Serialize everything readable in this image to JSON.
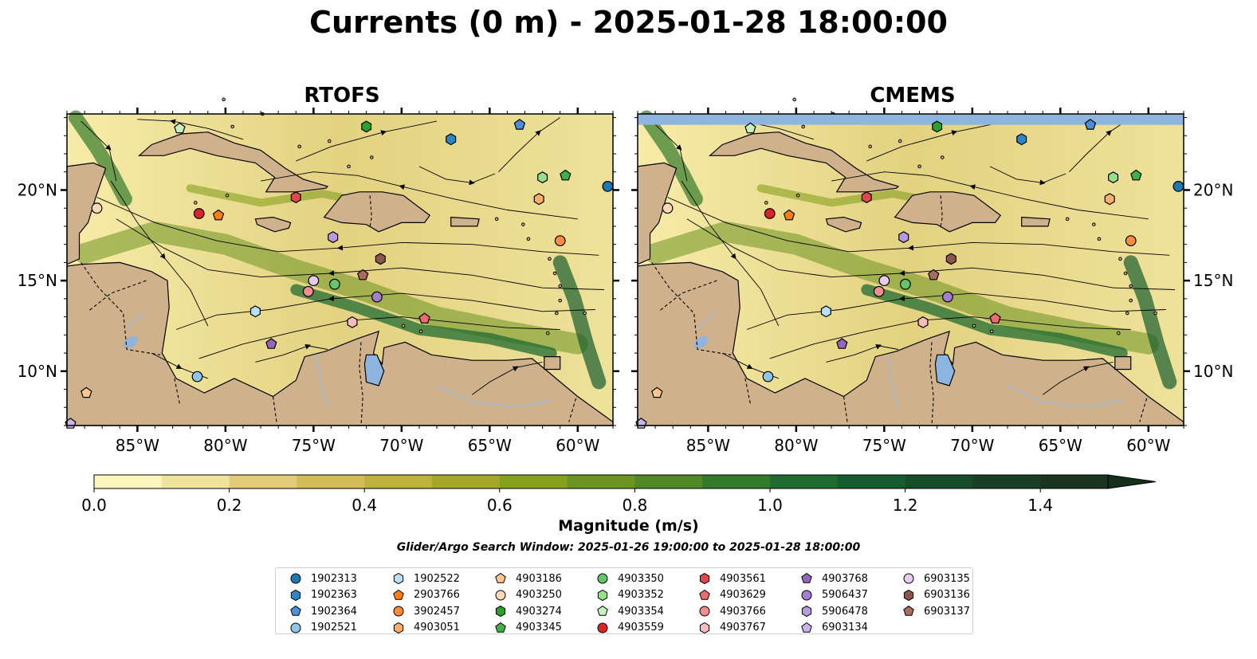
{
  "title": "Currents (0 m) - 2025-01-28 18:00:00",
  "panels": [
    {
      "key": "rtofs",
      "title": "RTOFS"
    },
    {
      "key": "cmems",
      "title": "CMEMS"
    }
  ],
  "map_extent": {
    "lon": [
      -89,
      -58
    ],
    "lat": [
      7,
      24.2
    ]
  },
  "lon_ticks": [
    -85,
    -80,
    -75,
    -70,
    -65,
    -60
  ],
  "lon_tick_labels": [
    "85°W",
    "80°W",
    "75°W",
    "70°W",
    "65°W",
    "60°W"
  ],
  "lat_ticks": [
    10,
    15,
    20
  ],
  "lat_tick_labels": [
    "10°N",
    "15°N",
    "20°N"
  ],
  "colors": {
    "land": "#cfb28b",
    "lake": "#8eb4e0",
    "ocean_low": "#fdf6bc",
    "ocean_high": "#14301a"
  },
  "colorbar": {
    "label": "Magnitude (m/s)",
    "min": 0.0,
    "max": 1.5,
    "extend": "max",
    "tick_values": [
      0.0,
      0.2,
      0.4,
      0.6,
      0.8,
      1.0,
      1.2,
      1.4
    ],
    "tick_labels": [
      "0.0",
      "0.2",
      "0.4",
      "0.6",
      "0.8",
      "1.0",
      "1.2",
      "1.4"
    ],
    "levels": [
      "#fdf6bc",
      "#f1e39c",
      "#e2cc7a",
      "#d4bc59",
      "#bdb23c",
      "#a3a728",
      "#86a01e",
      "#6b9421",
      "#4f8824",
      "#337a2a",
      "#1f6b30",
      "#175c2e",
      "#184d2b",
      "#1a3f27",
      "#1a3420",
      "#14301a"
    ]
  },
  "search_window": "Glider/Argo Search Window: 2025-01-26 19:00:00 to 2025-01-28 18:00:00",
  "chart_data": {
    "type": "scatter",
    "x_unit": "degrees longitude",
    "y_unit": "degrees latitude",
    "series": [
      {
        "name": "1902313",
        "marker": "circle",
        "color": "#1f77b4",
        "x": -58.3,
        "y": 20.2
      },
      {
        "name": "1902363",
        "marker": "hexagon",
        "color": "#2e86c8",
        "x": -67.2,
        "y": 22.8
      },
      {
        "name": "1902364",
        "marker": "pentagon",
        "color": "#4a90d9",
        "x": -63.3,
        "y": 23.6
      },
      {
        "name": "1902521",
        "marker": "circle",
        "color": "#8ec6ea",
        "x": -81.6,
        "y": 9.7
      },
      {
        "name": "1902522",
        "marker": "hexagon",
        "color": "#b9e0f4",
        "x": -78.3,
        "y": 13.3
      },
      {
        "name": "2903766",
        "marker": "pentagon",
        "color": "#ff7f0e",
        "x": -80.4,
        "y": 18.6
      },
      {
        "name": "3902457",
        "marker": "circle",
        "color": "#fd8d3c",
        "x": -61.0,
        "y": 17.2
      },
      {
        "name": "4903051",
        "marker": "hexagon",
        "color": "#fdae6b",
        "x": -62.2,
        "y": 19.5
      },
      {
        "name": "4903186",
        "marker": "pentagon",
        "color": "#fdc68c",
        "x": -87.9,
        "y": 8.8
      },
      {
        "name": "4903250",
        "marker": "circle",
        "color": "#fdd9b5",
        "x": -87.3,
        "y": 19.0
      },
      {
        "name": "4903274",
        "marker": "hexagon",
        "color": "#2ca02c",
        "x": -72.0,
        "y": 23.5
      },
      {
        "name": "4903345",
        "marker": "pentagon",
        "color": "#41b046",
        "x": -60.7,
        "y": 20.8
      },
      {
        "name": "4903350",
        "marker": "circle",
        "color": "#66c46a",
        "x": -73.8,
        "y": 14.8
      },
      {
        "name": "4903352",
        "marker": "hexagon",
        "color": "#98df8a",
        "x": -62.0,
        "y": 20.7
      },
      {
        "name": "4903354",
        "marker": "pentagon",
        "color": "#c7f0c0",
        "x": -82.6,
        "y": 23.4
      },
      {
        "name": "4903559",
        "marker": "circle",
        "color": "#d62728",
        "x": -81.5,
        "y": 18.7
      },
      {
        "name": "4903561",
        "marker": "hexagon",
        "color": "#e0474b",
        "x": -76.0,
        "y": 19.6
      },
      {
        "name": "4903629",
        "marker": "pentagon",
        "color": "#ee6a6c",
        "x": -68.7,
        "y": 12.9
      },
      {
        "name": "4903766",
        "marker": "circle",
        "color": "#f28e90",
        "x": -75.3,
        "y": 14.4
      },
      {
        "name": "4903767",
        "marker": "hexagon",
        "color": "#f9bcbc",
        "x": -72.8,
        "y": 12.7
      },
      {
        "name": "4903768",
        "marker": "pentagon",
        "color": "#9467bd",
        "x": -77.4,
        "y": 11.5
      },
      {
        "name": "5906437",
        "marker": "circle",
        "color": "#a57cd0",
        "x": -71.4,
        "y": 14.1
      },
      {
        "name": "5906478",
        "marker": "hexagon",
        "color": "#b89ae0",
        "x": -73.9,
        "y": 17.4
      },
      {
        "name": "6903134",
        "marker": "pentagon",
        "color": "#c9b3ea",
        "x": -88.8,
        "y": 7.1
      },
      {
        "name": "6903135",
        "marker": "circle",
        "color": "#e8c9f0",
        "x": -75.0,
        "y": 15.0
      },
      {
        "name": "6903136",
        "marker": "hexagon",
        "color": "#8c564b",
        "x": -71.2,
        "y": 16.2
      },
      {
        "name": "6903137",
        "marker": "pentagon",
        "color": "#a86c5c",
        "x": -72.2,
        "y": 15.3
      }
    ]
  }
}
